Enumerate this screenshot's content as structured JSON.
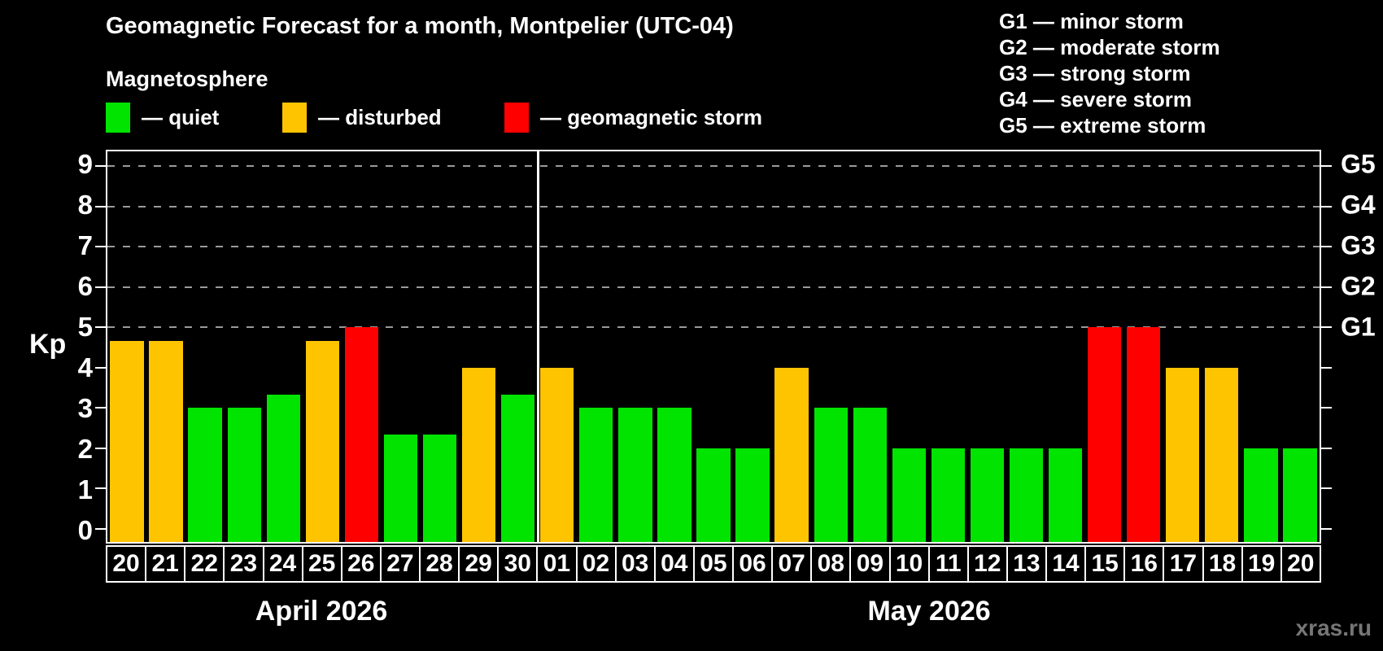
{
  "title": "Geomagnetic Forecast for a month, Montpelier (UTC-04)",
  "subtitle": "Magnetosphere",
  "legend": [
    {
      "name": "quiet",
      "label": "— quiet",
      "color": "#00e400"
    },
    {
      "name": "disturbed",
      "label": "— disturbed",
      "color": "#ffc400"
    },
    {
      "name": "storm",
      "label": "— geomagnetic storm",
      "color": "#ff0000"
    }
  ],
  "g_legend": [
    "G1 — minor storm",
    "G2 — moderate storm",
    "G3 — strong storm",
    "G4 — severe storm",
    "G5 — extreme storm"
  ],
  "watermark": "xras.ru",
  "chart_data": {
    "type": "bar",
    "title": "Geomagnetic Forecast for a month, Montpelier (UTC-04)",
    "ylabel": "Kp",
    "ylim": [
      0,
      9.5
    ],
    "y_ticks": [
      0,
      1,
      2,
      3,
      4,
      5,
      6,
      7,
      8,
      9
    ],
    "grid_levels": [
      5,
      6,
      7,
      8,
      9
    ],
    "right_axis": [
      {
        "kp": 5,
        "label": "G1"
      },
      {
        "kp": 6,
        "label": "G2"
      },
      {
        "kp": 7,
        "label": "G3"
      },
      {
        "kp": 8,
        "label": "G4"
      },
      {
        "kp": 9,
        "label": "G5"
      }
    ],
    "months": [
      {
        "label": "April 2026",
        "start": 0,
        "count": 11
      },
      {
        "label": "May 2026",
        "start": 11,
        "count": 20
      }
    ],
    "categories": [
      "20",
      "21",
      "22",
      "23",
      "24",
      "25",
      "26",
      "27",
      "28",
      "29",
      "30",
      "01",
      "02",
      "03",
      "04",
      "05",
      "06",
      "07",
      "08",
      "09",
      "10",
      "11",
      "12",
      "13",
      "14",
      "15",
      "16",
      "17",
      "18",
      "19",
      "20"
    ],
    "values": [
      4.67,
      4.67,
      3,
      3,
      3.33,
      4.67,
      5,
      2.33,
      2.33,
      4,
      3.33,
      4,
      3,
      3,
      3,
      2,
      2,
      4,
      3,
      3,
      2,
      2,
      2,
      2,
      2,
      5,
      5,
      4,
      4,
      2,
      2
    ],
    "statuses": [
      "disturbed",
      "disturbed",
      "quiet",
      "quiet",
      "quiet",
      "disturbed",
      "storm",
      "quiet",
      "quiet",
      "disturbed",
      "quiet",
      "disturbed",
      "quiet",
      "quiet",
      "quiet",
      "quiet",
      "quiet",
      "disturbed",
      "quiet",
      "quiet",
      "quiet",
      "quiet",
      "quiet",
      "quiet",
      "quiet",
      "storm",
      "storm",
      "disturbed",
      "disturbed",
      "quiet",
      "quiet"
    ],
    "colors": {
      "quiet": "#00e400",
      "disturbed": "#ffc400",
      "storm": "#ff0000"
    },
    "legend_position": "top-left",
    "grid": "dashed, Kp 5-9 only"
  }
}
